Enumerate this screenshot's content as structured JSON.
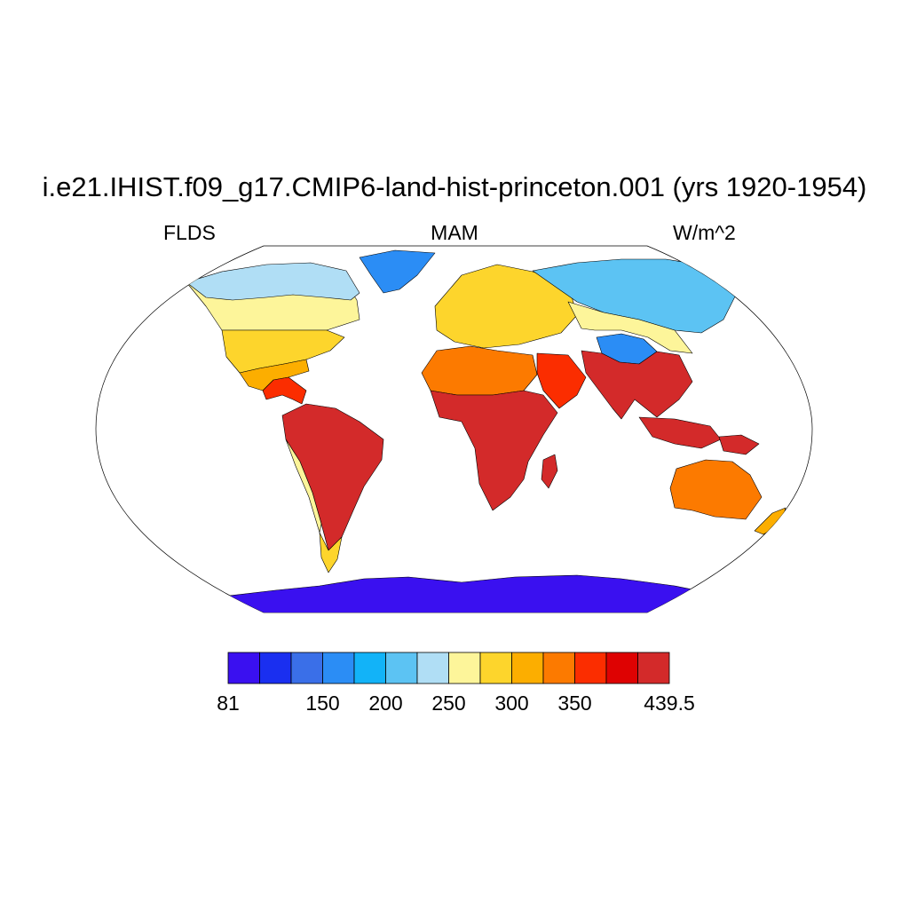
{
  "title": "i.e21.IHIST.f09_g17.CMIP6-land-hist-princeton.001 (yrs 1920-1954)",
  "left_label": "FLDS",
  "center_label": "MAM",
  "right_label": "W/m^2",
  "colorbar": {
    "colors": [
      "#3a10f0",
      "#1a2ff0",
      "#3a6fe8",
      "#2b8df5",
      "#12b3f8",
      "#5cc3f3",
      "#b0def5",
      "#fdf59a",
      "#fdd52c",
      "#fcae00",
      "#fc7a00",
      "#fb2d00",
      "#de0202",
      "#d32a2a"
    ],
    "labels": [
      {
        "text": "81",
        "slot": 0
      },
      {
        "text": "150",
        "slot": 3
      },
      {
        "text": "200",
        "slot": 5
      },
      {
        "text": "250",
        "slot": 7
      },
      {
        "text": "300",
        "slot": 9
      },
      {
        "text": "350",
        "slot": 11
      },
      {
        "text": "439.5",
        "slot": 14
      }
    ]
  },
  "regions": [
    {
      "name": "greenland",
      "color": "#2b8df5"
    },
    {
      "name": "north-america-arctic",
      "color": "#b0def5"
    },
    {
      "name": "north-america-north",
      "color": "#fdf59a"
    },
    {
      "name": "north-america-temperate",
      "color": "#fdd52c"
    },
    {
      "name": "north-america-south",
      "color": "#fcae00"
    },
    {
      "name": "central-america",
      "color": "#fb2d00"
    },
    {
      "name": "south-america",
      "color": "#d32a2a"
    },
    {
      "name": "patagonia",
      "color": "#fdd52c"
    },
    {
      "name": "andes",
      "color": "#fdf59a"
    },
    {
      "name": "europe",
      "color": "#fdd52c"
    },
    {
      "name": "siberia",
      "color": "#5cc3f3"
    },
    {
      "name": "central-asia",
      "color": "#fdf59a"
    },
    {
      "name": "north-africa",
      "color": "#fc7a00"
    },
    {
      "name": "africa",
      "color": "#d32a2a"
    },
    {
      "name": "arabia",
      "color": "#fb2d00"
    },
    {
      "name": "tibet",
      "color": "#2b8df5"
    },
    {
      "name": "south-asia",
      "color": "#d32a2a"
    },
    {
      "name": "madagascar",
      "color": "#d32a2a"
    },
    {
      "name": "indonesia",
      "color": "#d32a2a"
    },
    {
      "name": "new-guinea",
      "color": "#d32a2a"
    },
    {
      "name": "australia",
      "color": "#fc7a00"
    },
    {
      "name": "new-zealand",
      "color": "#fcae00"
    },
    {
      "name": "antarctica",
      "color": "#3a10f0"
    }
  ]
}
